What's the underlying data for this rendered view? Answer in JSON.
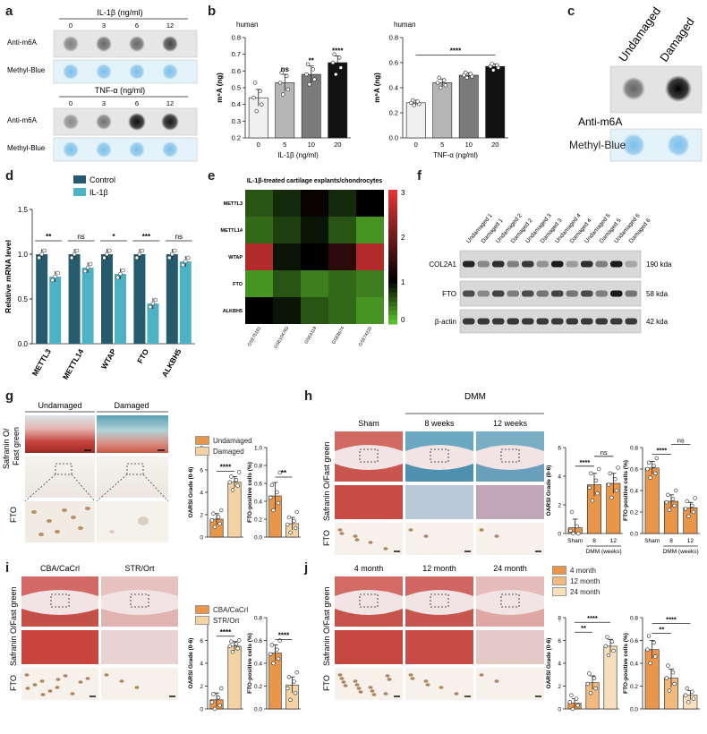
{
  "panels": {
    "a": {
      "letter": "a",
      "blocks": [
        {
          "title": "IL-1β (ng/ml)",
          "concentrations": [
            "0",
            "3",
            "6",
            "12"
          ],
          "rows": [
            "Anti-m6A",
            "Methyl-Blue"
          ],
          "intensity": [
            0.45,
            0.55,
            0.55,
            0.7
          ]
        },
        {
          "title": "TNF-α (ng/ml)",
          "concentrations": [
            "0",
            "3",
            "6",
            "12"
          ],
          "rows": [
            "Anti-m6A",
            "Methyl-Blue"
          ],
          "intensity": [
            0.4,
            0.5,
            0.95,
            0.9
          ]
        }
      ]
    },
    "b": {
      "letter": "b"
    },
    "c": {
      "letter": "c",
      "cols": [
        "Undamaged",
        "Damaged"
      ],
      "rows": [
        "Anti-m6A",
        "Methyl-Blue"
      ]
    },
    "d": {
      "letter": "d"
    },
    "e": {
      "letter": "e",
      "title": "IL-1β-treated cartilage explants/chondrocytes",
      "genes": [
        "METTL3",
        "METTL14",
        "WTAP",
        "FTO",
        "ALKBH5"
      ],
      "datasets": [
        "GSE75181",
        "GSE104793",
        "GSE4119",
        "GSE8574",
        "GSE74220"
      ],
      "scale_ticks": [
        "3",
        "2",
        "1",
        "0"
      ],
      "colors": {
        "low": "#66d433",
        "mid": "#000000",
        "high": "#e03535"
      }
    },
    "f": {
      "letter": "f",
      "lanes": [
        "Undamaged 1",
        "Damaged 1",
        "Undamaged 2",
        "Damaged 2",
        "Undamaged 3",
        "Damaged 3",
        "Undamaged 4",
        "Damaged 4",
        "Undamaged 5",
        "Damaged 5",
        "Undamaged 6",
        "Damaged 6"
      ],
      "bands": [
        {
          "name": "COL2A1",
          "size": "190 kda"
        },
        {
          "name": "FTO",
          "size": "58 kda"
        },
        {
          "name": "β-actin",
          "size": "42 kda"
        }
      ]
    },
    "g": {
      "letter": "g",
      "cols": [
        "Undamaged",
        "Damaged"
      ],
      "stain_label": "Safranin O/\nFast green",
      "fto_label": "FTO"
    },
    "h": {
      "letter": "h",
      "cols": [
        "Sham",
        "8 weeks",
        "12 weeks"
      ],
      "group_header": "DMM",
      "stain_label": "Safranin O/Fast green",
      "fto_label": "FTO"
    },
    "i": {
      "letter": "i",
      "cols": [
        "CBA/CaCrl",
        "STR/Ort"
      ],
      "stain_label": "Safranin O/Fast green",
      "fto_label": "FTO"
    },
    "j": {
      "letter": "j",
      "cols": [
        "4 month",
        "12 month",
        "24 month"
      ],
      "stain_label": "Safranin O/Fast green",
      "fto_label": "FTO"
    }
  },
  "chart_data": [
    {
      "id": "b1",
      "type": "bar",
      "title": "human",
      "categories": [
        "0",
        "5",
        "10",
        "20"
      ],
      "values": [
        0.44,
        0.53,
        0.58,
        0.65
      ],
      "errors": [
        0.05,
        0.05,
        0.05,
        0.04
      ],
      "points": [
        [
          0.36,
          0.4,
          0.44,
          0.48,
          0.53
        ],
        [
          0.46,
          0.49,
          0.53,
          0.57,
          0.59
        ],
        [
          0.52,
          0.55,
          0.58,
          0.61,
          0.64
        ],
        [
          0.58,
          0.62,
          0.65,
          0.68,
          0.7
        ]
      ],
      "colors": [
        "#f0f0f0",
        "#b5b5b5",
        "#7a7a7a",
        "#111111"
      ],
      "sig": [
        "",
        "ns",
        "**",
        "****"
      ],
      "xlabel": "IL-1β (ng/ml)",
      "ylabel": "m⁶A (ng)",
      "ylim": [
        0.2,
        0.8
      ],
      "yticks": [
        "0.2",
        "0.3",
        "0.4",
        "0.5",
        "0.6",
        "0.7",
        "0.8"
      ]
    },
    {
      "id": "b2",
      "type": "bar",
      "title": "human",
      "categories": [
        "0",
        "5",
        "10",
        "20"
      ],
      "values": [
        0.28,
        0.44,
        0.5,
        0.57
      ],
      "errors": [
        0.02,
        0.03,
        0.02,
        0.02
      ],
      "points": [
        [
          0.26,
          0.27,
          0.28,
          0.29,
          0.3
        ],
        [
          0.4,
          0.42,
          0.44,
          0.46,
          0.48
        ],
        [
          0.48,
          0.49,
          0.5,
          0.51,
          0.52
        ],
        [
          0.54,
          0.56,
          0.57,
          0.58,
          0.59
        ]
      ],
      "colors": [
        "#f0f0f0",
        "#b5b5b5",
        "#7a7a7a",
        "#111111"
      ],
      "sig_bracket": "****",
      "xlabel": "TNF-α (ng/ml)",
      "ylabel": "m⁶A (ng)",
      "ylim": [
        0.0,
        0.8
      ],
      "yticks": [
        "0.0",
        "0.2",
        "0.4",
        "0.6",
        "0.8"
      ]
    },
    {
      "id": "d",
      "type": "bar",
      "categories": [
        "METTL3",
        "METTL14",
        "WTAP",
        "FTO",
        "ALKBH5"
      ],
      "series": [
        {
          "name": "Control",
          "values": [
            1.0,
            1.0,
            1.0,
            1.0,
            1.0
          ],
          "color": "#255b6d"
        },
        {
          "name": "IL-1β",
          "values": [
            0.75,
            0.85,
            0.78,
            0.45,
            0.92
          ],
          "color": "#4db3c4"
        }
      ],
      "sig": [
        "**",
        "ns",
        "*",
        "***",
        "ns"
      ],
      "ylabel": "Relative mRNA level",
      "ylim": [
        0,
        1.5
      ],
      "yticks": [
        "0.0",
        "0.5",
        "1.0",
        "1.5"
      ]
    },
    {
      "id": "e",
      "type": "heatmap",
      "matrix": [
        [
          0.6,
          0.8,
          1.1,
          0.8,
          1.0
        ],
        [
          0.5,
          0.7,
          0.9,
          0.6,
          0.3
        ],
        [
          2.6,
          0.9,
          1.0,
          1.4,
          2.6
        ],
        [
          0.3,
          0.6,
          0.4,
          0.5,
          0.4
        ],
        [
          1.0,
          0.9,
          0.6,
          0.5,
          0.3
        ]
      ],
      "range": [
        0,
        3
      ]
    },
    {
      "id": "g1",
      "type": "bar",
      "categories": [
        "",
        ""
      ],
      "values": [
        1.6,
        4.9
      ],
      "errors": [
        0.5,
        0.5
      ],
      "points": [
        [
          0.9,
          1.2,
          1.5,
          1.8,
          2.1,
          2.4
        ],
        [
          4.2,
          4.6,
          4.9,
          5.1,
          5.4,
          5.8
        ]
      ],
      "colors": [
        "#e9964a",
        "#f3d3a2"
      ],
      "legend": [
        "Undamaged",
        "Damaged"
      ],
      "sig_bracket": "****",
      "ylabel": "OARSI Grade (0-6)",
      "ylim": [
        0,
        8
      ],
      "yticks": [
        "0",
        "2",
        "4",
        "6",
        "8"
      ]
    },
    {
      "id": "g2",
      "type": "bar",
      "categories": [
        "",
        ""
      ],
      "values": [
        0.46,
        0.15
      ],
      "errors": [
        0.15,
        0.07
      ],
      "points": [
        [
          0.3,
          0.38,
          0.44,
          0.5,
          0.58,
          0.72
        ],
        [
          0.05,
          0.1,
          0.14,
          0.18,
          0.22,
          0.28
        ]
      ],
      "colors": [
        "#e9964a",
        "#f3d3a2"
      ],
      "sig_bracket": "**",
      "ylabel": "FTO-positive cells (%)",
      "ylim": [
        0,
        1.0
      ],
      "yticks": [
        "0.0",
        "0.2",
        "0.4",
        "0.6",
        "0.8",
        "1.0"
      ]
    },
    {
      "id": "h1",
      "type": "bar",
      "categories": [
        "Sham",
        "8",
        "12"
      ],
      "values": [
        0.4,
        3.4,
        3.5
      ],
      "errors": [
        0.6,
        0.8,
        0.7
      ],
      "points": [
        [
          0,
          0,
          0.2,
          0.5,
          1.5
        ],
        [
          2.3,
          2.8,
          3.2,
          3.7,
          4.2,
          4.5
        ],
        [
          2.5,
          3.0,
          3.4,
          3.8,
          4.2,
          4.6
        ]
      ],
      "colors": [
        "#e9964a",
        "#e9964a",
        "#e9964a"
      ],
      "sig_brackets": [
        [
          "0",
          "1",
          "****"
        ],
        [
          "1",
          "2",
          "ns"
        ]
      ],
      "xgroup": "DMM (weeks)",
      "ylabel": "OARSI Grade (0-6)",
      "ylim": [
        0,
        6
      ],
      "yticks": [
        "0",
        "2",
        "4",
        "6"
      ]
    },
    {
      "id": "h2",
      "type": "bar",
      "categories": [
        "Sham",
        "8",
        "12"
      ],
      "values": [
        0.61,
        0.3,
        0.24
      ],
      "errors": [
        0.06,
        0.06,
        0.05
      ],
      "points": [
        [
          0.52,
          0.56,
          0.6,
          0.63,
          0.66,
          0.7
        ],
        [
          0.22,
          0.26,
          0.29,
          0.32,
          0.36,
          0.4
        ],
        [
          0.16,
          0.2,
          0.23,
          0.26,
          0.3,
          0.33
        ]
      ],
      "colors": [
        "#e9964a",
        "#e9964a",
        "#e9964a"
      ],
      "sig_brackets": [
        [
          "0",
          "1",
          "****"
        ],
        [
          "1",
          "2",
          "ns"
        ]
      ],
      "xgroup": "DMM (weeks)",
      "ylabel": "FTO-positive cells (%)",
      "ylim": [
        0,
        0.8
      ],
      "yticks": [
        "0.0",
        "0.2",
        "0.4",
        "0.6",
        "0.8"
      ]
    },
    {
      "id": "i1",
      "type": "bar",
      "categories": [
        "",
        ""
      ],
      "values": [
        0.8,
        5.5
      ],
      "errors": [
        0.6,
        0.4
      ],
      "points": [
        [
          0,
          0.3,
          0.6,
          1.0,
          1.3,
          1.8
        ],
        [
          5.0,
          5.3,
          5.5,
          5.7,
          5.9,
          6.0
        ]
      ],
      "colors": [
        "#e9964a",
        "#f3d3a2"
      ],
      "legend": [
        "CBA/CaCrl",
        "STR/Ort"
      ],
      "sig_bracket": "****",
      "ylabel": "OARSI Grade (0-6)",
      "ylim": [
        0,
        8
      ],
      "yticks": [
        "0",
        "2",
        "4",
        "6",
        "8"
      ]
    },
    {
      "id": "i2",
      "type": "bar",
      "categories": [
        "",
        ""
      ],
      "values": [
        0.49,
        0.21
      ],
      "errors": [
        0.07,
        0.07
      ],
      "points": [
        [
          0.4,
          0.44,
          0.48,
          0.52,
          0.56,
          0.6
        ],
        [
          0.08,
          0.14,
          0.18,
          0.24,
          0.28,
          0.32
        ]
      ],
      "colors": [
        "#e9964a",
        "#f3d3a2"
      ],
      "sig_bracket": "****",
      "ylabel": "FTO-positive cells (%)",
      "ylim": [
        0,
        0.8
      ],
      "yticks": [
        "0.0",
        "0.2",
        "0.4",
        "0.6",
        "0.8"
      ]
    },
    {
      "id": "j1",
      "type": "bar",
      "categories": [
        "",
        "",
        ""
      ],
      "values": [
        0.5,
        2.3,
        5.5
      ],
      "errors": [
        0.4,
        0.6,
        0.6
      ],
      "points": [
        [
          0,
          0.3,
          0.6,
          0.9,
          1.2
        ],
        [
          1.4,
          1.8,
          2.2,
          2.7,
          3.1
        ],
        [
          4.7,
          5.1,
          5.5,
          5.9,
          6.3
        ]
      ],
      "colors": [
        "#e9964a",
        "#f1b97d",
        "#f6dfba"
      ],
      "legend": [
        "4 month",
        "12 month",
        "24 month"
      ],
      "sig_brackets": [
        [
          "0",
          "1",
          "**"
        ],
        [
          "0",
          "2",
          "****"
        ]
      ],
      "ylabel": "OARSI Grade (0-6)",
      "ylim": [
        0,
        8
      ],
      "yticks": [
        "0",
        "2",
        "4",
        "6",
        "8"
      ]
    },
    {
      "id": "j2",
      "type": "bar",
      "categories": [
        "",
        "",
        ""
      ],
      "values": [
        0.52,
        0.27,
        0.12
      ],
      "errors": [
        0.08,
        0.08,
        0.04
      ],
      "points": [
        [
          0.4,
          0.46,
          0.52,
          0.58,
          0.64
        ],
        [
          0.16,
          0.22,
          0.27,
          0.32,
          0.38
        ],
        [
          0.06,
          0.09,
          0.12,
          0.15,
          0.18
        ]
      ],
      "colors": [
        "#e9964a",
        "#f1b97d",
        "#f6dfba"
      ],
      "sig_brackets": [
        [
          "0",
          "1",
          "**"
        ],
        [
          "0",
          "2",
          "****"
        ]
      ],
      "ylabel": "FTO-positive cells (%)",
      "ylim": [
        0,
        0.8
      ],
      "yticks": [
        "0.0",
        "0.2",
        "0.4",
        "0.6",
        "0.8"
      ]
    }
  ]
}
